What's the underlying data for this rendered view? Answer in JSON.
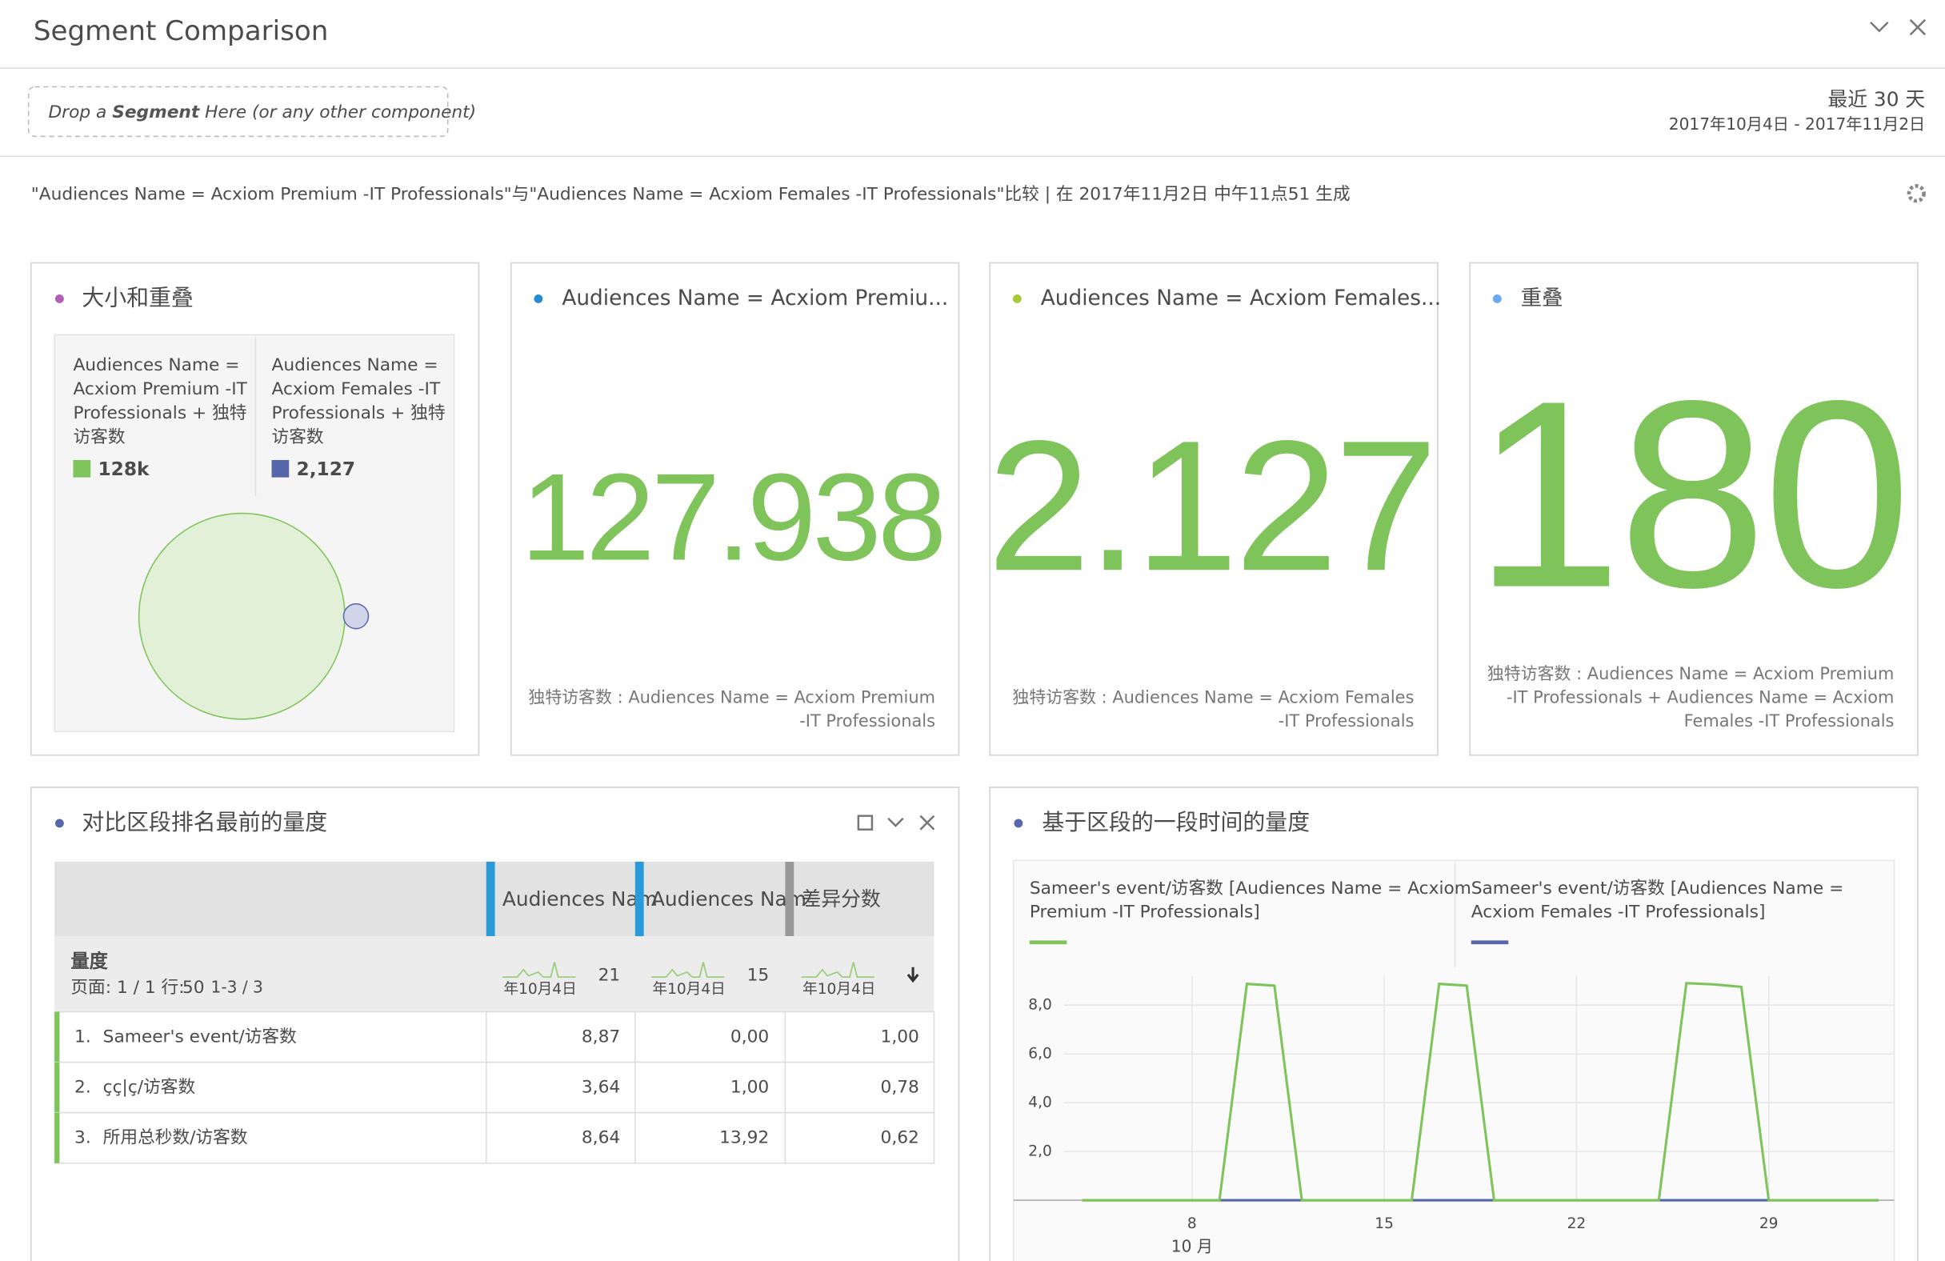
{
  "header": {
    "title": "Segment Comparison"
  },
  "drop_zone": {
    "prefix": "Drop a",
    "bold": "Segment",
    "suffix": "Here (or any other component)"
  },
  "date_range": {
    "label": "最近 30 天",
    "range": "2017年10月4日 - 2017年11月2日"
  },
  "description": "\"Audiences Name = Acxiom Premium -IT Professionals\"与\"Audiences Name = Acxiom Females -IT Professionals\"比较 | 在 2017年11月2日 中午11点51 生成",
  "size_panel": {
    "title": "大小和重叠",
    "left_lines": [
      "Audiences Name =",
      "Acxiom Premium -IT",
      "Professionals + 独特",
      "访客数"
    ],
    "left_value": "128k",
    "right_lines": [
      "Audiences Name =",
      "Acxiom Females -IT",
      "Professionals + 独特",
      "访客数"
    ],
    "right_value": "2,127"
  },
  "metric_panels": [
    {
      "title": "Audiences Name = Acxiom Premiu...",
      "value": "127.938",
      "caption": [
        "独特访客数 : Audiences Name = Acxiom Premium",
        "-IT Professionals"
      ]
    },
    {
      "title": "Audiences Name = Acxiom Females...",
      "value": "2.127",
      "caption": [
        "独特访客数 : Audiences Name = Acxiom Females",
        "-IT Professionals"
      ]
    },
    {
      "title": "重叠",
      "value": "180",
      "caption": [
        "独特访客数 : Audiences Name = Acxiom Premium",
        "-IT Professionals + Audiences Name = Acxiom",
        "Females -IT Professionals"
      ]
    }
  ],
  "table_panel": {
    "title": "对比区段排名最前的量度",
    "columns": [
      "Audiences Nam",
      "Audiences Nam",
      "差异分数"
    ],
    "metric_label": "量度",
    "page_info": "页面: 1 / 1 行:",
    "rows_per_page": "50",
    "range": "1-3 / 3",
    "spark_labels": [
      "年10月4日",
      "年10月4日",
      "年10月4日"
    ],
    "totals": [
      "21",
      "15"
    ],
    "rows": [
      [
        "1.",
        "Sameer's event/访客数",
        "8,87",
        "0,00",
        "1,00"
      ],
      [
        "2.",
        "çç|ç/访客数",
        "3,64",
        "1,00",
        "0,78"
      ],
      [
        "3.",
        "所用总秒数/访客数",
        "8,64",
        "13,92",
        "0,62"
      ]
    ]
  },
  "trend_chart": {
    "type": "line",
    "title": "基于区段的一段时间的量度",
    "x_month": "10 月",
    "categories": [
      null,
      null,
      null,
      null,
      "8",
      null,
      null,
      null,
      null,
      null,
      null,
      "15",
      null,
      null,
      null,
      null,
      null,
      null,
      "22",
      null,
      null,
      null,
      null,
      null,
      null,
      "29",
      null,
      null,
      null,
      null
    ],
    "ylim": [
      0,
      9.2
    ],
    "yticks": [
      {
        "value": 2,
        "label": "2,0"
      },
      {
        "value": 4,
        "label": "4,0"
      },
      {
        "value": 6,
        "label": "6,0"
      },
      {
        "value": 8,
        "label": "8,0"
      }
    ],
    "series": [
      {
        "name": "Sameer's event/访客数 [Audiences Name = Acxiom Premium -IT Professionals]",
        "color": "#7fc45a",
        "values": [
          0,
          0,
          0,
          0,
          0,
          0,
          8.87,
          8.8,
          0,
          0,
          0,
          0,
          0,
          8.87,
          8.8,
          0,
          0,
          0,
          0,
          0,
          0,
          0,
          8.9,
          8.85,
          8.75,
          0,
          0,
          0,
          0,
          0
        ]
      },
      {
        "name": "Sameer's event/访客数 [Audiences Name = Acxiom Females -IT Professionals]",
        "color": "#5566aa",
        "values": [
          0,
          0,
          0,
          0,
          0,
          0,
          0,
          0,
          0,
          0,
          0,
          0,
          0,
          0,
          0,
          0,
          0,
          0,
          0,
          0,
          0,
          0,
          0,
          0,
          0,
          0,
          0,
          0,
          0,
          0
        ]
      }
    ]
  }
}
